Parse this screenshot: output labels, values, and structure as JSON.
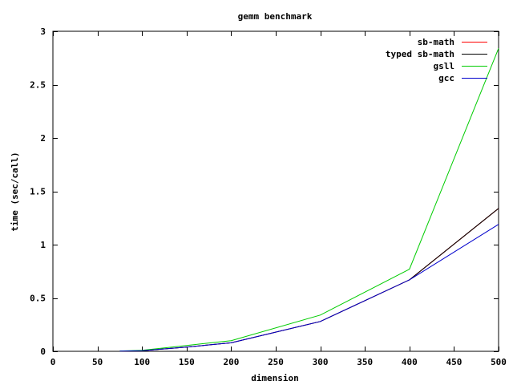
{
  "chart_data": {
    "type": "line",
    "title": "gemm benchmark",
    "xlabel": "dimension",
    "ylabel": "time (sec/call)",
    "xlim": [
      0,
      500
    ],
    "ylim": [
      0,
      3
    ],
    "x_ticks": [
      0,
      50,
      100,
      150,
      200,
      250,
      300,
      350,
      400,
      450,
      500
    ],
    "y_ticks": [
      0,
      0.5,
      1,
      1.5,
      2,
      2.5,
      3
    ],
    "x_tick_labels": [
      "0",
      "50",
      "100",
      "150",
      "200",
      "250",
      "300",
      "350",
      "400",
      "450",
      "500"
    ],
    "y_tick_labels": [
      "0",
      "0.5",
      "1",
      "1.5",
      "2",
      "2.5",
      "3"
    ],
    "grid": false,
    "legend_position": "top-right",
    "series": [
      {
        "name": "sb-math",
        "color": "#ff0000",
        "x": [
          75,
          100,
          150,
          200,
          300,
          400,
          500
        ],
        "y": [
          0.002,
          0.005,
          0.04,
          0.08,
          0.28,
          0.67,
          1.34
        ]
      },
      {
        "name": "typed sb-math",
        "color": "#000000",
        "x": [
          75,
          100,
          150,
          200,
          300,
          400,
          500
        ],
        "y": [
          0.002,
          0.005,
          0.04,
          0.08,
          0.28,
          0.67,
          1.34
        ]
      },
      {
        "name": "gsll",
        "color": "#00cc00",
        "x": [
          75,
          100,
          150,
          200,
          300,
          400,
          500
        ],
        "y": [
          0.003,
          0.01,
          0.055,
          0.1,
          0.34,
          0.77,
          2.84
        ]
      },
      {
        "name": "gcc",
        "color": "#0000cc",
        "x": [
          75,
          100,
          150,
          200,
          300,
          400,
          500
        ],
        "y": [
          0.002,
          0.005,
          0.04,
          0.08,
          0.28,
          0.67,
          1.19
        ]
      }
    ]
  }
}
